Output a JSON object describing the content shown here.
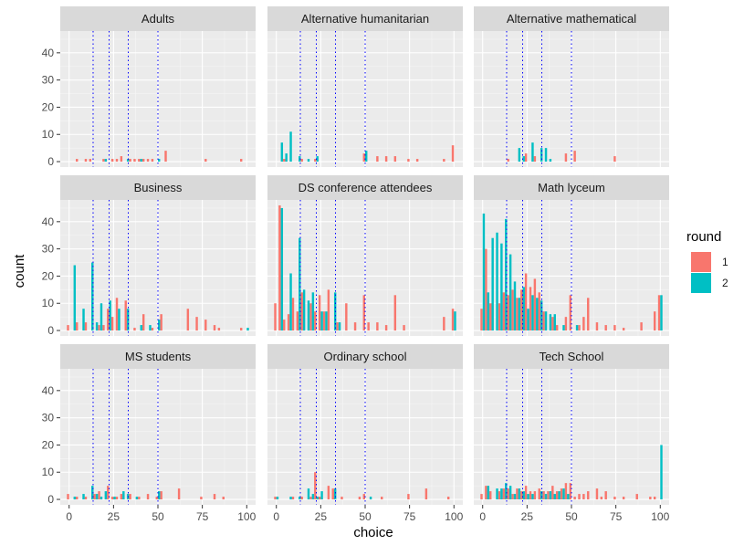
{
  "chart_data": {
    "type": "bar",
    "chart_kind": "faceted histogram",
    "xlabel": "choice",
    "ylabel": "count",
    "xlim": [
      -5,
      105
    ],
    "ylim": [
      -2,
      48
    ],
    "x_ticks": [
      0,
      25,
      50,
      75,
      100
    ],
    "y_ticks": [
      0,
      10,
      20,
      30,
      40
    ],
    "bin_width": 2.5,
    "grid": true,
    "legend_title": "round",
    "legend_position": "right",
    "reference_lines_x": [
      13.5,
      22.5,
      33.3,
      50
    ],
    "reference_line_color": "#0000FF",
    "series": [
      {
        "name": "1",
        "color": "#F8766D"
      },
      {
        "name": "2",
        "color": "#00BFC4"
      }
    ],
    "facets": [
      {
        "title": "Adults",
        "bars": {
          "1": [
            [
              5,
              1
            ],
            [
              10,
              1
            ],
            [
              12.5,
              1
            ],
            [
              20,
              1
            ],
            [
              25,
              1
            ],
            [
              27.5,
              1
            ],
            [
              30,
              2
            ],
            [
              35,
              1
            ],
            [
              37.5,
              1
            ],
            [
              40,
              1
            ],
            [
              42.5,
              1
            ],
            [
              45,
              1
            ],
            [
              47.5,
              1
            ],
            [
              55,
              4
            ],
            [
              77.5,
              1
            ],
            [
              97.5,
              1
            ]
          ],
          "2": [
            [
              20,
              1
            ],
            [
              32.5,
              1
            ],
            [
              40,
              1
            ],
            [
              50,
              1
            ]
          ]
        }
      },
      {
        "title": "Alternative humanitarian",
        "bars": {
          "1": [
            [
              5,
              1
            ],
            [
              15,
              1
            ],
            [
              22.5,
              1
            ],
            [
              50,
              3
            ],
            [
              57.5,
              2
            ],
            [
              62.5,
              2
            ],
            [
              67.5,
              2
            ],
            [
              75,
              1
            ],
            [
              80,
              1
            ],
            [
              95,
              1
            ],
            [
              100,
              6
            ]
          ],
          "2": [
            [
              2.5,
              7
            ],
            [
              5,
              3
            ],
            [
              7.5,
              11
            ],
            [
              12.5,
              2
            ],
            [
              17.5,
              1
            ],
            [
              22.5,
              2
            ],
            [
              50,
              4
            ]
          ]
        }
      },
      {
        "title": "Alternative mathematical",
        "bars": {
          "1": [
            [
              15,
              1
            ],
            [
              25,
              3
            ],
            [
              30,
              2
            ],
            [
              47.5,
              3
            ],
            [
              52.5,
              4
            ],
            [
              75,
              2
            ]
          ],
          "2": [
            [
              20,
              5
            ],
            [
              22.5,
              2
            ],
            [
              27.5,
              7
            ],
            [
              32.5,
              5
            ],
            [
              35,
              5
            ],
            [
              37.5,
              1
            ]
          ]
        }
      },
      {
        "title": "Business",
        "bars": {
          "1": [
            [
              0,
              2
            ],
            [
              5,
              3
            ],
            [
              10,
              3
            ],
            [
              17.5,
              2
            ],
            [
              20,
              2
            ],
            [
              22.5,
              8
            ],
            [
              25,
              5
            ],
            [
              27.5,
              12
            ],
            [
              32.5,
              11
            ],
            [
              37.5,
              1
            ],
            [
              42.5,
              6
            ],
            [
              47.5,
              1
            ],
            [
              52.5,
              6
            ],
            [
              67.5,
              8
            ],
            [
              72.5,
              5
            ],
            [
              77.5,
              4
            ],
            [
              82.5,
              2
            ],
            [
              85,
              1
            ],
            [
              97.5,
              1
            ]
          ],
          "2": [
            [
              2.5,
              24
            ],
            [
              7.5,
              8
            ],
            [
              12.5,
              25
            ],
            [
              15,
              3
            ],
            [
              17.5,
              10
            ],
            [
              22.5,
              11
            ],
            [
              27.5,
              8
            ],
            [
              32.5,
              8
            ],
            [
              40,
              2
            ],
            [
              45,
              2
            ],
            [
              50,
              4
            ],
            [
              100,
              1
            ]
          ]
        }
      },
      {
        "title": "DS conference attendees",
        "bars": {
          "1": [
            [
              0,
              10
            ],
            [
              2.5,
              46
            ],
            [
              5,
              4
            ],
            [
              7.5,
              6
            ],
            [
              10,
              12
            ],
            [
              12.5,
              7
            ],
            [
              15,
              14
            ],
            [
              20,
              10
            ],
            [
              22.5,
              7
            ],
            [
              25,
              13
            ],
            [
              27.5,
              7
            ],
            [
              30,
              15
            ],
            [
              35,
              3
            ],
            [
              40,
              10
            ],
            [
              45,
              3
            ],
            [
              50,
              13
            ],
            [
              52.5,
              3
            ],
            [
              57.5,
              3
            ],
            [
              62.5,
              2
            ],
            [
              67.5,
              13
            ],
            [
              72.5,
              2
            ],
            [
              95,
              5
            ],
            [
              100,
              8
            ]
          ],
          "2": [
            [
              2.5,
              45
            ],
            [
              7.5,
              21
            ],
            [
              12.5,
              34
            ],
            [
              15,
              15
            ],
            [
              17.5,
              11
            ],
            [
              20,
              14
            ],
            [
              25,
              7
            ],
            [
              27.5,
              7
            ],
            [
              32.5,
              14
            ],
            [
              35,
              3
            ],
            [
              100,
              7
            ]
          ]
        }
      },
      {
        "title": "Math lyceum",
        "bars": {
          "1": [
            [
              0,
              8
            ],
            [
              2.5,
              30
            ],
            [
              5,
              10
            ],
            [
              10,
              10
            ],
            [
              12.5,
              14
            ],
            [
              15,
              13
            ],
            [
              17.5,
              15
            ],
            [
              20,
              12
            ],
            [
              22.5,
              15
            ],
            [
              25,
              21
            ],
            [
              27.5,
              16
            ],
            [
              30,
              19
            ],
            [
              32.5,
              14
            ],
            [
              35,
              7
            ],
            [
              40,
              5
            ],
            [
              42.5,
              2
            ],
            [
              47.5,
              5
            ],
            [
              50,
              13
            ],
            [
              55,
              2
            ],
            [
              57.5,
              5
            ],
            [
              60,
              12
            ],
            [
              65,
              3
            ],
            [
              70,
              2
            ],
            [
              75,
              2
            ],
            [
              80,
              1
            ],
            [
              90,
              3
            ],
            [
              97.5,
              7
            ],
            [
              100,
              13
            ]
          ],
          "2": [
            [
              0,
              43
            ],
            [
              2.5,
              14
            ],
            [
              5,
              34
            ],
            [
              7.5,
              36
            ],
            [
              10,
              32
            ],
            [
              12.5,
              41
            ],
            [
              15,
              28
            ],
            [
              17.5,
              18
            ],
            [
              20,
              12
            ],
            [
              22.5,
              16
            ],
            [
              25,
              8
            ],
            [
              27.5,
              13
            ],
            [
              30,
              12
            ],
            [
              32.5,
              11
            ],
            [
              35,
              7
            ],
            [
              37.5,
              6
            ],
            [
              40,
              6
            ],
            [
              45,
              2
            ],
            [
              52.5,
              2
            ],
            [
              100,
              13
            ]
          ]
        }
      },
      {
        "title": "MS students",
        "bars": {
          "1": [
            [
              0,
              2
            ],
            [
              5,
              1
            ],
            [
              10,
              1
            ],
            [
              15,
              2
            ],
            [
              17.5,
              3
            ],
            [
              22.5,
              5
            ],
            [
              25,
              1
            ],
            [
              27.5,
              1
            ],
            [
              30,
              2
            ],
            [
              35,
              2
            ],
            [
              40,
              1
            ],
            [
              45,
              2
            ],
            [
              50,
              1
            ],
            [
              52.5,
              3
            ],
            [
              62.5,
              4
            ],
            [
              75,
              1
            ],
            [
              82.5,
              2
            ],
            [
              87.5,
              1
            ]
          ],
          "2": [
            [
              2.5,
              1
            ],
            [
              7.5,
              2
            ],
            [
              12.5,
              5
            ],
            [
              15,
              2
            ],
            [
              17.5,
              1
            ],
            [
              20,
              3
            ],
            [
              25,
              1
            ],
            [
              30,
              3
            ],
            [
              32.5,
              2
            ],
            [
              37.5,
              1
            ],
            [
              50,
              3
            ]
          ]
        }
      },
      {
        "title": "Ordinary school",
        "bars": {
          "1": [
            [
              0,
              1
            ],
            [
              10,
              1
            ],
            [
              15,
              1
            ],
            [
              20,
              1
            ],
            [
              22.5,
              10
            ],
            [
              25,
              1
            ],
            [
              30,
              5
            ],
            [
              32.5,
              4
            ],
            [
              37.5,
              1
            ],
            [
              47.5,
              1
            ],
            [
              50,
              2
            ],
            [
              60,
              1
            ],
            [
              75,
              2
            ],
            [
              85,
              4
            ],
            [
              97.5,
              1
            ]
          ],
          "2": [
            [
              0,
              1
            ],
            [
              7.5,
              1
            ],
            [
              12.5,
              1
            ],
            [
              17.5,
              4
            ],
            [
              20,
              2
            ],
            [
              22.5,
              1
            ],
            [
              25,
              3
            ],
            [
              32.5,
              4
            ],
            [
              52.5,
              1
            ]
          ]
        }
      },
      {
        "title": "Tech School",
        "bars": {
          "1": [
            [
              0,
              2
            ],
            [
              2.5,
              5
            ],
            [
              5,
              3
            ],
            [
              10,
              3
            ],
            [
              12.5,
              4
            ],
            [
              15,
              4
            ],
            [
              17.5,
              2
            ],
            [
              20,
              4
            ],
            [
              22.5,
              3
            ],
            [
              25,
              5
            ],
            [
              27.5,
              3
            ],
            [
              30,
              3
            ],
            [
              32.5,
              4
            ],
            [
              35,
              3
            ],
            [
              37.5,
              3
            ],
            [
              40,
              5
            ],
            [
              42.5,
              3
            ],
            [
              45,
              4
            ],
            [
              47.5,
              6
            ],
            [
              50,
              6
            ],
            [
              52.5,
              1
            ],
            [
              55,
              2
            ],
            [
              57.5,
              2
            ],
            [
              60,
              3
            ],
            [
              65,
              4
            ],
            [
              67.5,
              1
            ],
            [
              70,
              3
            ],
            [
              75,
              1
            ],
            [
              80,
              1
            ],
            [
              87.5,
              2
            ],
            [
              95,
              1
            ],
            [
              97.5,
              1
            ]
          ],
          "2": [
            [
              2.5,
              5
            ],
            [
              7.5,
              4
            ],
            [
              10,
              4
            ],
            [
              12.5,
              6
            ],
            [
              15,
              5
            ],
            [
              17.5,
              2
            ],
            [
              20,
              4
            ],
            [
              22.5,
              3
            ],
            [
              25,
              2
            ],
            [
              27.5,
              2
            ],
            [
              32.5,
              3
            ],
            [
              35,
              2
            ],
            [
              37.5,
              3
            ],
            [
              40,
              2
            ],
            [
              42.5,
              3
            ],
            [
              45,
              4
            ],
            [
              47.5,
              2
            ],
            [
              100,
              20
            ]
          ]
        }
      }
    ]
  }
}
